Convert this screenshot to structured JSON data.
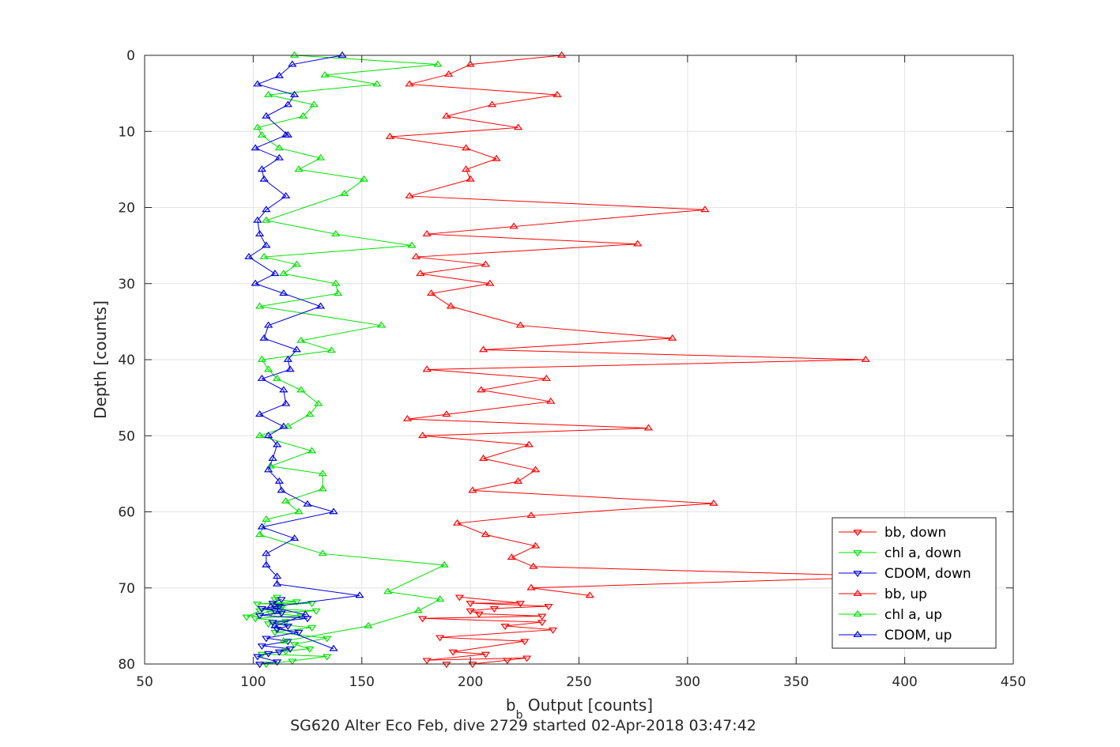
{
  "chart_data": {
    "type": "line",
    "title": "SG620 Alter Eco Feb, dive 2729 started 02-Apr-2018 03:47:42",
    "xlabel_main": "b",
    "xlabel_sub": "b",
    "xlabel_rest": " Output [counts]",
    "ylabel": "Depth [counts]",
    "xlim": [
      50,
      450
    ],
    "ylim": [
      0,
      80
    ],
    "y_reversed": true,
    "grid": true,
    "legend_position": "bottom-right",
    "x_ticks": [
      50,
      100,
      150,
      200,
      250,
      300,
      350,
      400,
      450
    ],
    "y_ticks": [
      0,
      10,
      20,
      30,
      40,
      50,
      60,
      70,
      80
    ],
    "x_tick_labels": [
      "50",
      "100",
      "150",
      "200",
      "250",
      "300",
      "350",
      "400",
      "450"
    ],
    "y_tick_labels": [
      "0",
      "10",
      "20",
      "30",
      "40",
      "50",
      "60",
      "70",
      "80"
    ],
    "series": [
      {
        "name": "bb, down",
        "color": "#ff0000",
        "marker": "triangle-down",
        "x": [
          189,
          201,
          217,
          226,
          180,
          207,
          192,
          225,
          186,
          238,
          216,
          233,
          178,
          233,
          204,
          200,
          211,
          236,
          200,
          223,
          195
        ],
        "y": [
          80,
          80,
          79.5,
          79.2,
          79.5,
          78.7,
          78.4,
          77,
          76.5,
          75.5,
          75,
          74.5,
          74,
          73.7,
          73.4,
          73,
          72.7,
          72.4,
          72,
          72,
          71.2
        ]
      },
      {
        "name": "chl a, down",
        "color": "#00e000",
        "marker": "triangle-down",
        "x": [
          106,
          118,
          134,
          104,
          115,
          126,
          119,
          134,
          110,
          127,
          107,
          115,
          101,
          122,
          108,
          129,
          112,
          97,
          103,
          113,
          110,
          127,
          102,
          120,
          110,
          111
        ],
        "y": [
          80,
          79.6,
          79,
          78.7,
          78.3,
          78,
          77.4,
          76.6,
          75.8,
          75.2,
          74.7,
          74.4,
          74,
          73.7,
          73.3,
          73,
          72.8,
          73.8,
          73,
          72.6,
          72.3,
          72,
          72.1,
          71.8,
          71.5,
          71.2
        ]
      },
      {
        "name": "CDOM, down",
        "color": "#0000e0",
        "marker": "triangle-down",
        "x": [
          103,
          111,
          102,
          107,
          112,
          117,
          104,
          116,
          106,
          121,
          111,
          116,
          109,
          125,
          103,
          113,
          110,
          104,
          112,
          109,
          113
        ],
        "y": [
          80,
          79.7,
          79,
          78.6,
          78.4,
          78,
          77.6,
          77,
          76.6,
          75.8,
          75.4,
          75,
          74.5,
          74,
          73.6,
          73.3,
          73,
          72.7,
          72.4,
          72,
          71.5
        ]
      },
      {
        "name": "bb, up",
        "color": "#ff0000",
        "marker": "triangle-up",
        "x": [
          242,
          200,
          190,
          172,
          240,
          210,
          189,
          222,
          163,
          198,
          212,
          198,
          200,
          172,
          308,
          220,
          180,
          277,
          175,
          207,
          177,
          209,
          182,
          191,
          223,
          293,
          206,
          382,
          180,
          235,
          205,
          237,
          189,
          171,
          282,
          178,
          227,
          206,
          230,
          222,
          201,
          312,
          228,
          194,
          207,
          230,
          219,
          229,
          398,
          228,
          255
        ],
        "y": [
          0,
          1.2,
          2.5,
          3.8,
          5.2,
          6.5,
          8,
          9.5,
          10.7,
          12.2,
          13.6,
          15,
          16.3,
          18.5,
          20.3,
          22.5,
          23.5,
          24.8,
          26.5,
          27.5,
          28.7,
          30,
          31.3,
          33,
          35.5,
          37.2,
          38.7,
          40,
          41.3,
          42.5,
          44,
          45.5,
          47.2,
          47.8,
          49,
          50,
          51.2,
          53,
          54.5,
          56,
          57.2,
          58.9,
          60.5,
          61.5,
          63,
          64.5,
          66,
          67.2,
          68.5,
          70,
          71
        ]
      },
      {
        "name": "chl a, up",
        "color": "#00e000",
        "marker": "triangle-up",
        "x": [
          119,
          185,
          133,
          157,
          107,
          128,
          123,
          102,
          104,
          112,
          131,
          121,
          151,
          142,
          106,
          138,
          173,
          105,
          120,
          114,
          138,
          139,
          103,
          159,
          122,
          136,
          104,
          107,
          111,
          122,
          130,
          126,
          116,
          103,
          127,
          108,
          132,
          132,
          115,
          121,
          106,
          103,
          132,
          188,
          162,
          186,
          176,
          153,
          114
        ],
        "y": [
          0,
          1.2,
          2.6,
          3.8,
          5.2,
          6.5,
          8,
          9.5,
          10.5,
          12.2,
          13.5,
          15,
          16.3,
          18.2,
          21.7,
          23.5,
          25,
          26.5,
          27.5,
          28.7,
          30,
          31.3,
          33,
          35.5,
          37.5,
          38.8,
          40,
          41.3,
          42.5,
          44,
          45.8,
          47.2,
          48.8,
          50,
          52,
          54,
          55,
          57,
          58.6,
          60,
          61,
          63,
          65.5,
          67,
          70.5,
          71.5,
          73,
          75,
          77
        ]
      },
      {
        "name": "CDOM, up",
        "color": "#0000e0",
        "marker": "triangle-up",
        "x": [
          141,
          118,
          112,
          102,
          119,
          116,
          106,
          116,
          115,
          101,
          112,
          104,
          105,
          115,
          106,
          102,
          103,
          106,
          98,
          110,
          101,
          114,
          131,
          107,
          105,
          120,
          116,
          117,
          104,
          114,
          115,
          103,
          114,
          107,
          111,
          109,
          107,
          112,
          113,
          125,
          137,
          104,
          119,
          106,
          106,
          111,
          111,
          149,
          108,
          124,
          110,
          137
        ],
        "y": [
          0,
          1.2,
          2.7,
          3.8,
          5.2,
          6.5,
          8,
          10.5,
          10.5,
          12.2,
          13.5,
          15,
          16.3,
          18.5,
          20.3,
          21.7,
          23.5,
          25,
          26.5,
          28.7,
          30,
          31.3,
          33,
          35.5,
          37.2,
          38.7,
          40,
          41.3,
          42.5,
          44,
          45.8,
          47.2,
          48.8,
          50,
          51.2,
          53,
          54.5,
          56,
          57.2,
          59,
          60,
          62,
          63.5,
          65.5,
          67,
          68.5,
          69.5,
          71,
          72.5,
          73.5,
          75,
          78
        ]
      }
    ]
  }
}
